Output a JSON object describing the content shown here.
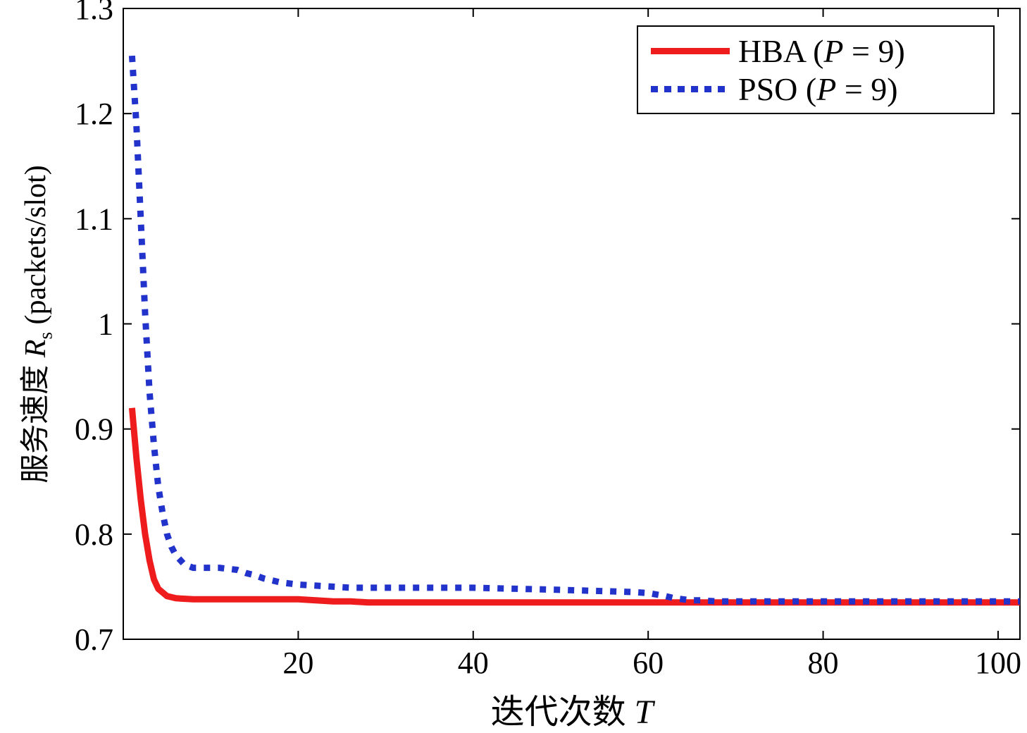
{
  "figure": {
    "background": "#ffffff",
    "axis_color": "#000000"
  },
  "chart_data": {
    "type": "line",
    "xlabel": "迭代次数 T",
    "ylabel": "服务速度 Rs (packets/slot)",
    "xlabel_parts": {
      "text": "迭代次数 ",
      "var": "T"
    },
    "ylabel_parts": {
      "text": "服务速度 ",
      "var": "R",
      "sub": "s",
      "suffix": " (packets/slot)"
    },
    "xlim": [
      0,
      102.5
    ],
    "ylim": [
      0.7,
      1.3
    ],
    "xticks": [
      20,
      40,
      60,
      80,
      100
    ],
    "xtick_labels": [
      "20",
      "40",
      "60",
      "80",
      "100"
    ],
    "yticks": [
      0.7,
      0.8,
      0.9,
      1.0,
      1.1,
      1.2,
      1.3
    ],
    "ytick_labels": [
      "0.7",
      "0.8",
      "0.9",
      "1",
      "1.1",
      "1.2",
      "1.3"
    ],
    "grid": false,
    "legend_position": "top-right",
    "series": [
      {
        "id": "hba-series",
        "name": "HBA (P = 9)",
        "legend": {
          "pre": "HBA (",
          "var": "P",
          "post": " = 9)"
        },
        "color": "#ee1c1c",
        "style": "solid",
        "line_width": 9,
        "x": [
          1,
          1.5,
          2,
          2.5,
          3,
          3.5,
          4,
          5,
          6,
          8,
          10,
          12,
          15,
          18,
          20,
          22,
          24,
          26,
          28,
          30,
          35,
          40,
          45,
          50,
          55,
          60,
          65,
          70,
          75,
          80,
          85,
          90,
          95,
          100,
          102.5
        ],
        "y": [
          0.92,
          0.873,
          0.833,
          0.8,
          0.775,
          0.757,
          0.748,
          0.741,
          0.739,
          0.738,
          0.738,
          0.738,
          0.738,
          0.738,
          0.738,
          0.737,
          0.736,
          0.736,
          0.735,
          0.735,
          0.735,
          0.735,
          0.735,
          0.735,
          0.735,
          0.735,
          0.735,
          0.735,
          0.735,
          0.735,
          0.735,
          0.735,
          0.735,
          0.735,
          0.735
        ]
      },
      {
        "id": "pso-series",
        "name": "PSO (P = 9)",
        "legend": {
          "pre": "PSO (",
          "var": "P",
          "post": " = 9)"
        },
        "color": "#2233cc",
        "style": "dotted",
        "line_width": 9,
        "x": [
          1,
          1.5,
          2,
          2.5,
          3,
          3.5,
          4,
          4.5,
          5,
          5.5,
          6,
          7,
          8,
          9,
          10,
          11,
          12,
          13,
          14,
          15,
          16,
          17,
          18,
          19,
          20,
          22,
          24,
          26,
          28,
          30,
          35,
          40,
          45,
          50,
          54,
          58,
          60,
          62,
          63,
          64,
          65,
          66,
          68,
          70,
          75,
          80,
          85,
          90,
          95,
          100,
          102.5
        ],
        "y": [
          1.255,
          1.19,
          1.1,
          1.01,
          0.935,
          0.885,
          0.845,
          0.82,
          0.8,
          0.788,
          0.78,
          0.771,
          0.768,
          0.768,
          0.768,
          0.768,
          0.767,
          0.766,
          0.763,
          0.761,
          0.758,
          0.756,
          0.754,
          0.753,
          0.752,
          0.751,
          0.75,
          0.749,
          0.749,
          0.749,
          0.749,
          0.749,
          0.748,
          0.747,
          0.746,
          0.745,
          0.744,
          0.741,
          0.739,
          0.738,
          0.737,
          0.737,
          0.736,
          0.736,
          0.736,
          0.736,
          0.736,
          0.736,
          0.736,
          0.736,
          0.736
        ]
      }
    ]
  }
}
